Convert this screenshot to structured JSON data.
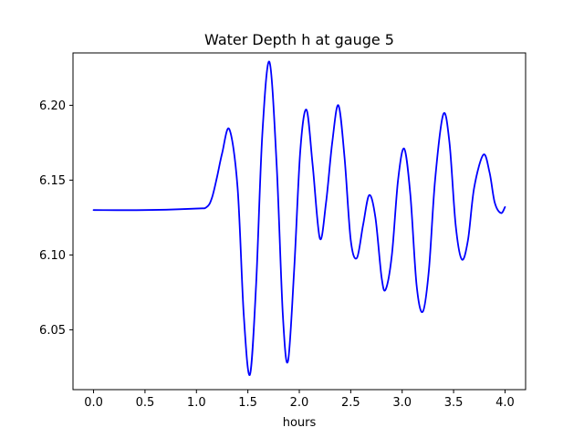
{
  "chart_data": {
    "type": "line",
    "title": "Water Depth h at gauge 5",
    "xlabel": "hours",
    "ylabel": "",
    "xlim": [
      -0.2,
      4.2
    ],
    "ylim": [
      6.01,
      6.235
    ],
    "xticks": [
      0.0,
      0.5,
      1.0,
      1.5,
      2.0,
      2.5,
      3.0,
      3.5,
      4.0
    ],
    "xtick_labels": [
      "0.0",
      "0.5",
      "1.0",
      "1.5",
      "2.0",
      "2.5",
      "3.0",
      "3.5",
      "4.0"
    ],
    "yticks": [
      6.05,
      6.1,
      6.15,
      6.2
    ],
    "ytick_labels": [
      "6.05",
      "6.10",
      "6.15",
      "6.20"
    ],
    "grid": false,
    "series": [
      {
        "color": "#0000ff",
        "x": [
          0.0,
          0.5,
          1.0,
          1.1,
          1.15,
          1.2,
          1.25,
          1.32,
          1.4,
          1.46,
          1.52,
          1.58,
          1.64,
          1.71,
          1.78,
          1.84,
          1.89,
          1.95,
          2.01,
          2.07,
          2.13,
          2.2,
          2.26,
          2.32,
          2.38,
          2.44,
          2.5,
          2.56,
          2.62,
          2.68,
          2.74,
          2.8,
          2.84,
          2.9,
          2.96,
          3.02,
          3.08,
          3.14,
          3.2,
          3.26,
          3.32,
          3.4,
          3.46,
          3.52,
          3.58,
          3.64,
          3.7,
          3.79,
          3.85,
          3.9,
          3.96,
          4.0
        ],
        "y": [
          6.13,
          6.13,
          6.131,
          6.132,
          6.138,
          6.152,
          6.168,
          6.184,
          6.145,
          6.06,
          6.02,
          6.08,
          6.18,
          6.229,
          6.16,
          6.06,
          6.029,
          6.09,
          6.17,
          6.197,
          6.16,
          6.111,
          6.135,
          6.175,
          6.2,
          6.165,
          6.11,
          6.098,
          6.12,
          6.14,
          6.125,
          6.085,
          6.077,
          6.1,
          6.15,
          6.171,
          6.14,
          6.08,
          6.062,
          6.09,
          6.15,
          6.194,
          6.175,
          6.12,
          6.097,
          6.11,
          6.145,
          6.167,
          6.155,
          6.135,
          6.128,
          6.132
        ]
      }
    ]
  }
}
